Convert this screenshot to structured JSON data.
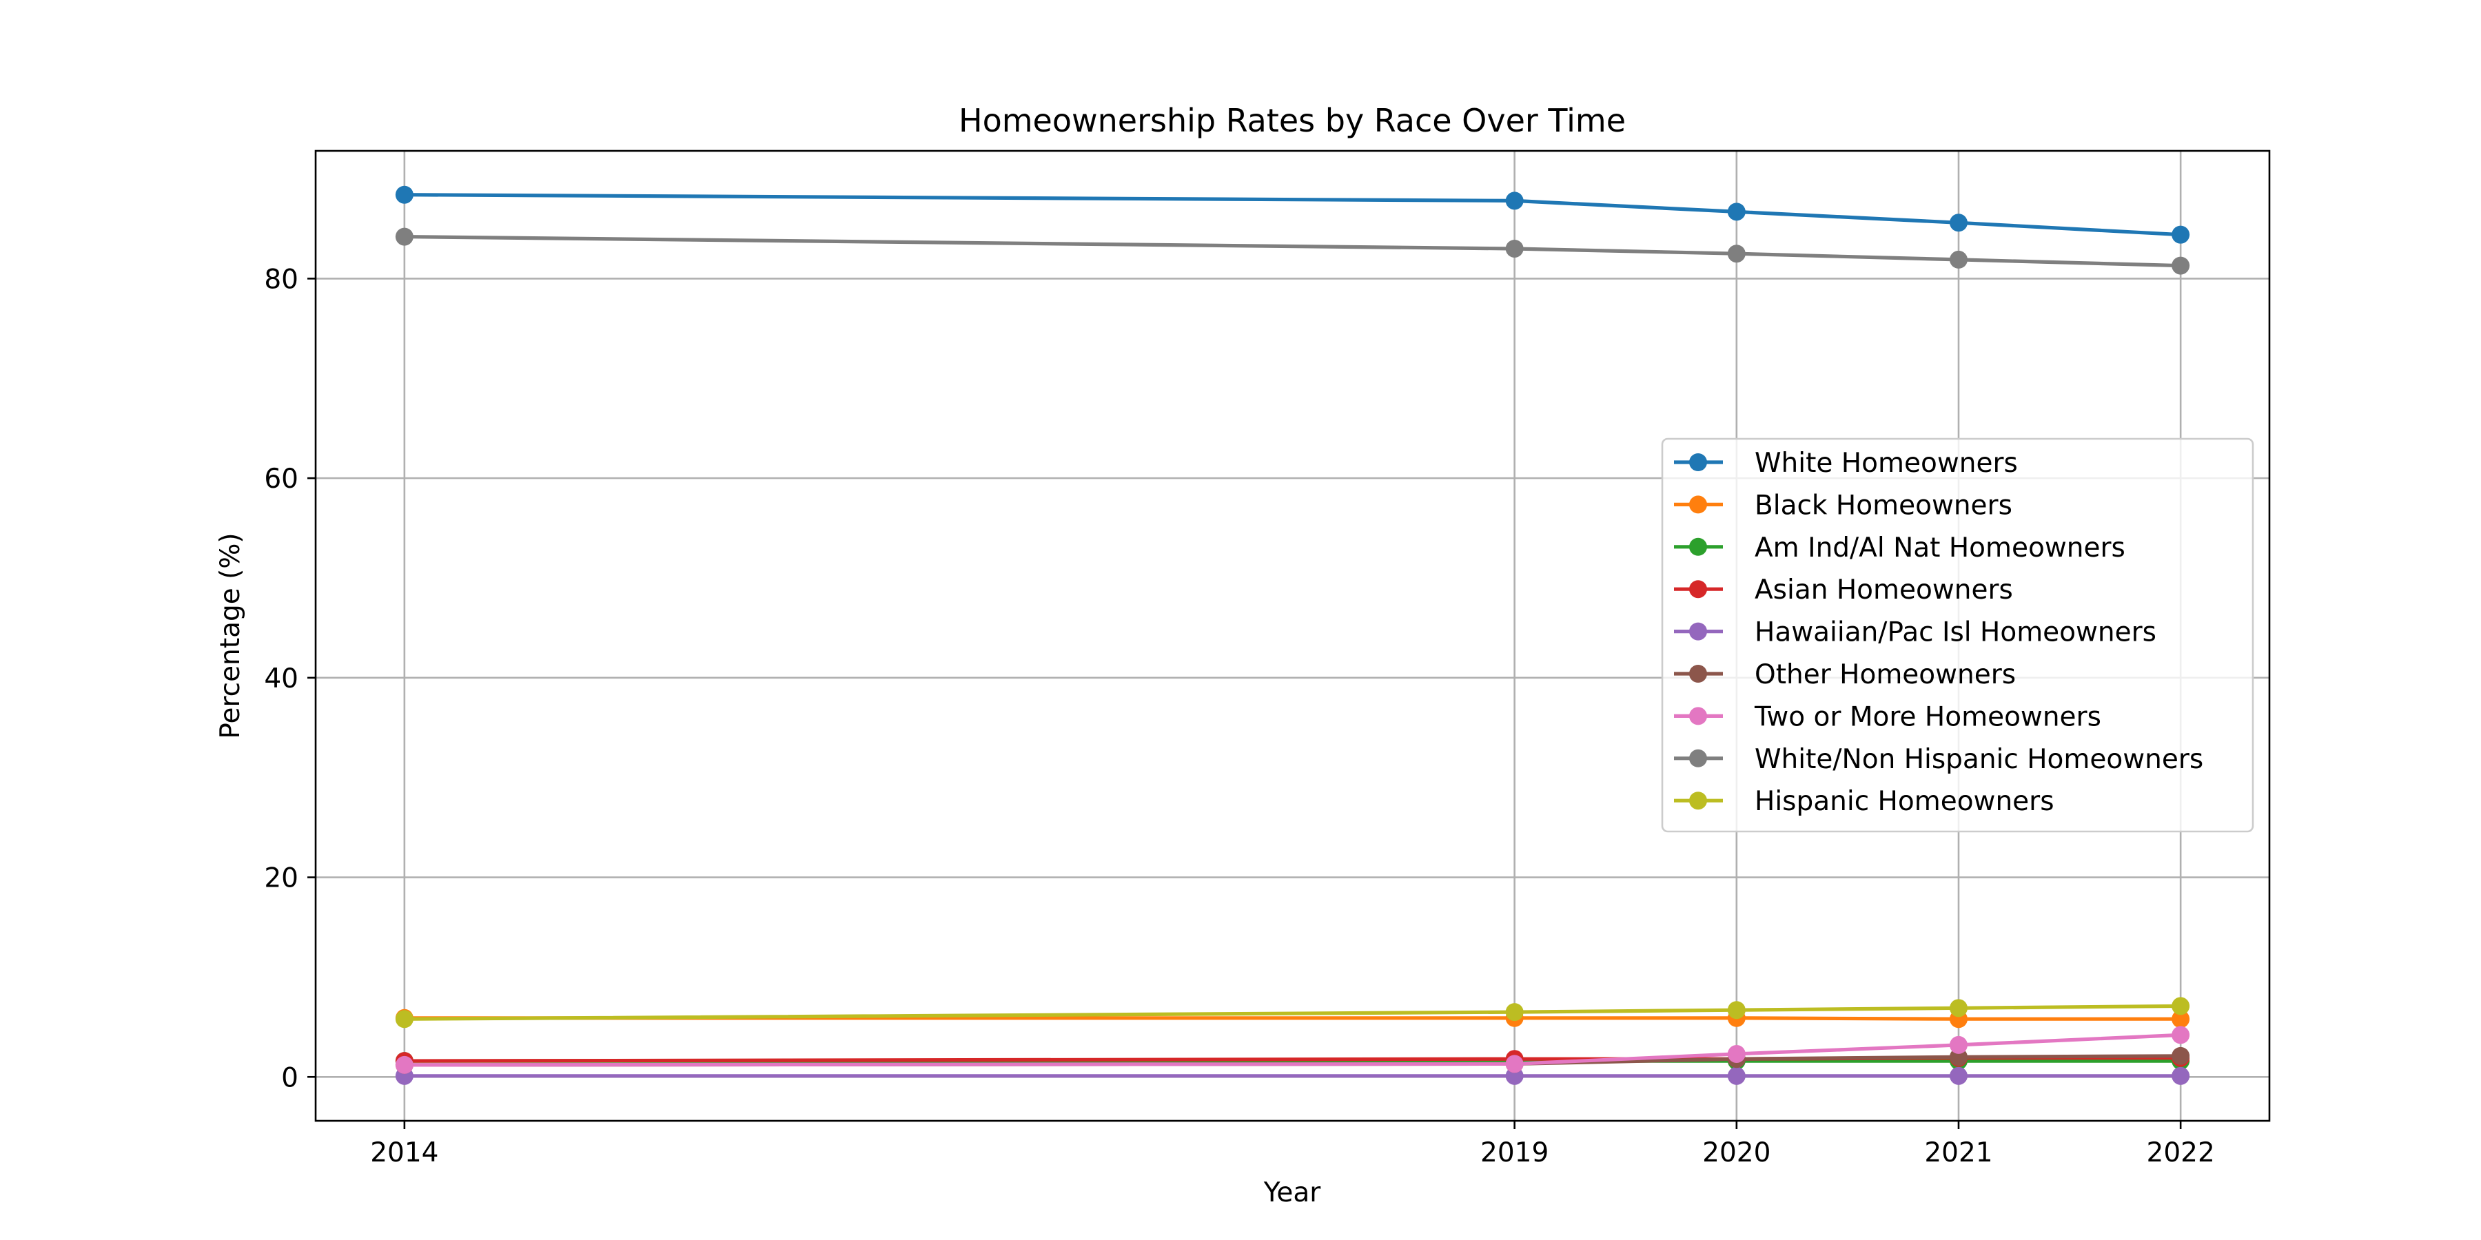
{
  "chart_data": {
    "type": "line",
    "title": "Homeownership Rates by Race Over Time",
    "xlabel": "Year",
    "ylabel": "Percentage (%)",
    "x": [
      2014,
      2019,
      2020,
      2021,
      2022
    ],
    "xticks": [
      "2014",
      "2019",
      "2020",
      "2021",
      "2022"
    ],
    "yticks": [
      0,
      20,
      40,
      60,
      80
    ],
    "xlim": [
      2013.6,
      2022.4
    ],
    "ylim": [
      -4.4,
      92.8
    ],
    "grid": true,
    "legend_position": "center-right",
    "series": [
      {
        "name": "White Homeowners",
        "color": "#1f77b4",
        "values": [
          88.4,
          87.8,
          86.7,
          85.6,
          84.4
        ]
      },
      {
        "name": "Black Homeowners",
        "color": "#ff7f0e",
        "values": [
          5.9,
          5.9,
          5.9,
          5.8,
          5.8
        ]
      },
      {
        "name": "Am Ind/Al Nat Homeowners",
        "color": "#2ca02c",
        "values": [
          1.6,
          1.6,
          1.6,
          1.6,
          1.6
        ]
      },
      {
        "name": "Asian Homeowners",
        "color": "#d62728",
        "values": [
          1.6,
          1.8,
          1.8,
          1.9,
          1.9
        ]
      },
      {
        "name": "Hawaiian/Pac Isl Homeowners",
        "color": "#9467bd",
        "values": [
          0.1,
          0.1,
          0.1,
          0.1,
          0.1
        ]
      },
      {
        "name": "Other Homeowners",
        "color": "#8c564b",
        "values": [
          1.2,
          1.3,
          1.8,
          2.0,
          2.1
        ]
      },
      {
        "name": "Two or More Homeowners",
        "color": "#e377c2",
        "values": [
          1.2,
          1.3,
          2.3,
          3.2,
          4.2
        ]
      },
      {
        "name": "White/Non Hispanic Homeowners",
        "color": "#7f7f7f",
        "values": [
          84.2,
          83.0,
          82.5,
          81.9,
          81.3
        ]
      },
      {
        "name": "Hispanic Homeowners",
        "color": "#bcbd22",
        "values": [
          5.8,
          6.5,
          6.7,
          6.9,
          7.1
        ]
      }
    ]
  }
}
